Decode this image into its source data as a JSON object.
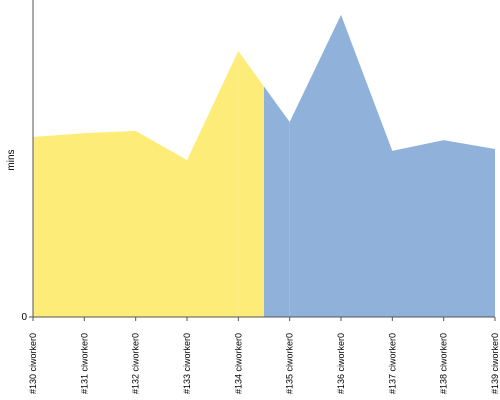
{
  "chart_data": {
    "type": "area",
    "y_label": "mins",
    "categories": [
      "#130 ciworker0",
      "#131 ciworker0",
      "#132 ciworker0",
      "#133 ciworker0",
      "#134 ciworker0",
      "#135 ciworker0",
      "#136 ciworker0",
      "#137 ciworker0",
      "#138 ciworker0",
      "#139 ciworker0"
    ],
    "series": [
      {
        "color": "#fdec78",
        "values": [
          56.8,
          58,
          58.7,
          49.5,
          83.9,
          null,
          null,
          null,
          null,
          null
        ]
      },
      {
        "color": "#8fb1da",
        "values": [
          null,
          null,
          null,
          null,
          null,
          61.5,
          95.3,
          52.4,
          55.8,
          53
        ]
      }
    ],
    "ylim": [
      0,
      100
    ],
    "yticks": [
      0
    ]
  }
}
